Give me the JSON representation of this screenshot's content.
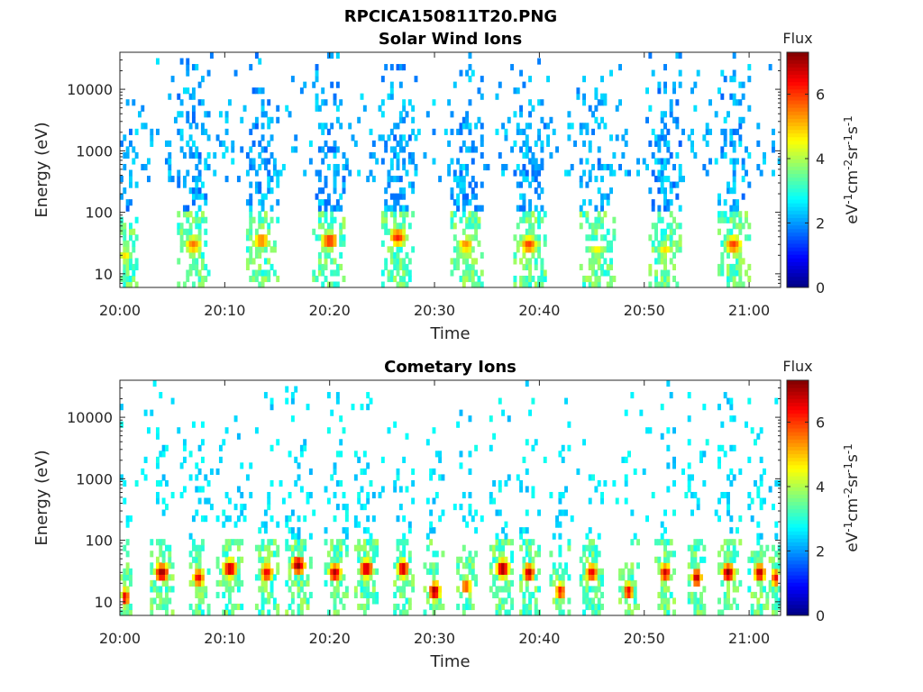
{
  "figure": {
    "title": "RPCICA150811T20.PNG"
  },
  "colormap": {
    "name": "jet",
    "stops": [
      "#00007f",
      "#0000ff",
      "#007fff",
      "#00ffff",
      "#7fff7f",
      "#ffff00",
      "#ff7f00",
      "#ff0000",
      "#7f0000"
    ]
  },
  "chart_data": [
    {
      "type": "heatmap",
      "title": "Solar Wind Ions",
      "xlabel": "Time",
      "ylabel": "Energy (eV)",
      "x_range": [
        "20:00",
        "21:03"
      ],
      "x_ticks": [
        "20:00",
        "20:10",
        "20:20",
        "20:30",
        "20:40",
        "20:50",
        "21:00"
      ],
      "y_scale": "log",
      "y_range": [
        6,
        40000
      ],
      "y_ticks": [
        10,
        100,
        1000,
        10000
      ],
      "y_tick_labels": [
        "10",
        "100",
        "1000",
        "10000"
      ],
      "colorbar": {
        "label": "Flux",
        "unit_label": "eV-1cm-2sr-1s-1",
        "range": [
          0,
          7.3
        ],
        "ticks": [
          0,
          2,
          4,
          6
        ],
        "tick_labels": [
          "0",
          "2",
          "4",
          "6"
        ]
      },
      "bursts": [
        {
          "center": "20:00.5",
          "width_min": 2.2,
          "peak_energy_ev": 20,
          "peak_flux": 4.8
        },
        {
          "center": "20:07",
          "width_min": 2.8,
          "peak_energy_ev": 30,
          "peak_flux": 5.6
        },
        {
          "center": "20:13.5",
          "width_min": 2.8,
          "peak_energy_ev": 35,
          "peak_flux": 5.6
        },
        {
          "center": "20:20",
          "width_min": 2.8,
          "peak_energy_ev": 35,
          "peak_flux": 6.2
        },
        {
          "center": "20:26.5",
          "width_min": 2.8,
          "peak_energy_ev": 40,
          "peak_flux": 6.2
        },
        {
          "center": "20:33",
          "width_min": 2.8,
          "peak_energy_ev": 30,
          "peak_flux": 5.4
        },
        {
          "center": "20:39",
          "width_min": 2.8,
          "peak_energy_ev": 30,
          "peak_flux": 6.0
        },
        {
          "center": "20:45.5",
          "width_min": 2.8,
          "peak_energy_ev": 25,
          "peak_flux": 4.6
        },
        {
          "center": "20:52",
          "width_min": 2.8,
          "peak_energy_ev": 25,
          "peak_flux": 4.8
        },
        {
          "center": "20:58.5",
          "width_min": 2.8,
          "peak_energy_ev": 30,
          "peak_flux": 6.0
        }
      ],
      "background": {
        "energy_min_ev": 300,
        "flux": 2.2
      }
    },
    {
      "type": "heatmap",
      "title": "Cometary Ions",
      "xlabel": "Time",
      "ylabel": "Energy (eV)",
      "x_range": [
        "20:00",
        "21:03"
      ],
      "x_ticks": [
        "20:00",
        "20:10",
        "20:20",
        "20:30",
        "20:40",
        "20:50",
        "21:00"
      ],
      "y_scale": "log",
      "y_range": [
        6,
        40000
      ],
      "y_ticks": [
        10,
        100,
        1000,
        10000
      ],
      "y_tick_labels": [
        "10",
        "100",
        "1000",
        "10000"
      ],
      "colorbar": {
        "label": "Flux",
        "unit_label": "eV-1cm-2sr-1s-1",
        "range": [
          0,
          7.3
        ],
        "ticks": [
          0,
          2,
          4,
          6
        ],
        "tick_labels": [
          "0",
          "2",
          "4",
          "6"
        ]
      },
      "bursts": [
        {
          "center": "20:00.5",
          "width_min": 1.2,
          "peak_energy_ev": 12,
          "peak_flux": 6.8
        },
        {
          "center": "20:04",
          "width_min": 2.2,
          "peak_energy_ev": 30,
          "peak_flux": 7.2
        },
        {
          "center": "20:07.5",
          "width_min": 1.8,
          "peak_energy_ev": 25,
          "peak_flux": 6.6
        },
        {
          "center": "20:10.5",
          "width_min": 2.2,
          "peak_energy_ev": 35,
          "peak_flux": 7.0
        },
        {
          "center": "20:14",
          "width_min": 2.0,
          "peak_energy_ev": 30,
          "peak_flux": 6.6
        },
        {
          "center": "20:17",
          "width_min": 2.2,
          "peak_energy_ev": 40,
          "peak_flux": 7.2
        },
        {
          "center": "20:20.5",
          "width_min": 2.0,
          "peak_energy_ev": 30,
          "peak_flux": 7.0
        },
        {
          "center": "20:23.5",
          "width_min": 2.2,
          "peak_energy_ev": 35,
          "peak_flux": 7.0
        },
        {
          "center": "20:27",
          "width_min": 1.8,
          "peak_energy_ev": 35,
          "peak_flux": 7.0
        },
        {
          "center": "20:30",
          "width_min": 1.8,
          "peak_energy_ev": 15,
          "peak_flux": 7.2
        },
        {
          "center": "20:33",
          "width_min": 1.8,
          "peak_energy_ev": 18,
          "peak_flux": 6.0
        },
        {
          "center": "20:36.5",
          "width_min": 2.0,
          "peak_energy_ev": 35,
          "peak_flux": 7.3
        },
        {
          "center": "20:39",
          "width_min": 1.8,
          "peak_energy_ev": 30,
          "peak_flux": 7.0
        },
        {
          "center": "20:42",
          "width_min": 1.6,
          "peak_energy_ev": 15,
          "peak_flux": 6.4
        },
        {
          "center": "20:45",
          "width_min": 2.0,
          "peak_energy_ev": 30,
          "peak_flux": 6.6
        },
        {
          "center": "20:48.5",
          "width_min": 1.6,
          "peak_energy_ev": 15,
          "peak_flux": 6.6
        },
        {
          "center": "20:52",
          "width_min": 1.8,
          "peak_energy_ev": 30,
          "peak_flux": 6.8
        },
        {
          "center": "20:55",
          "width_min": 1.6,
          "peak_energy_ev": 25,
          "peak_flux": 7.0
        },
        {
          "center": "20:58",
          "width_min": 2.0,
          "peak_energy_ev": 30,
          "peak_flux": 7.3
        },
        {
          "center": "21:01",
          "width_min": 1.8,
          "peak_energy_ev": 30,
          "peak_flux": 7.0
        },
        {
          "center": "21:02.5",
          "width_min": 1.2,
          "peak_energy_ev": 25,
          "peak_flux": 6.6
        }
      ],
      "background": {
        "energy_min_ev": 200,
        "flux": 2.4
      }
    }
  ]
}
